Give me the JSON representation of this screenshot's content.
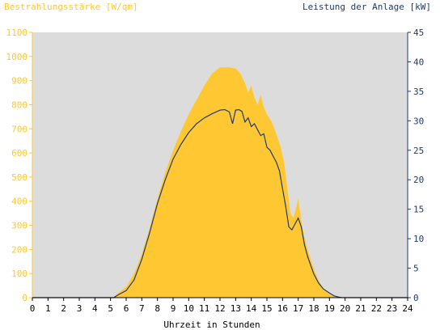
{
  "chart_data": {
    "type": "area",
    "left_axis_title": "Bestrahlungsstärke [W/qm]",
    "right_axis_title": "Leistung der Anlage [kW]",
    "xlabel": "Uhrzeit in Stunden",
    "xlim": [
      0,
      24
    ],
    "x_ticks": [
      "0",
      "1",
      "2",
      "3",
      "4",
      "5",
      "6",
      "7",
      "8",
      "9",
      "10",
      "11",
      "12",
      "13",
      "14",
      "15",
      "16",
      "17",
      "18",
      "19",
      "20",
      "21",
      "22",
      "23",
      "24"
    ],
    "y_left_lim": [
      0,
      1100
    ],
    "y_left_ticks": [
      "0",
      "100",
      "200",
      "300",
      "400",
      "500",
      "600",
      "700",
      "800",
      "900",
      "1000",
      "1100"
    ],
    "y_right_lim": [
      0,
      45
    ],
    "y_right_ticks": [
      "0",
      "5",
      "10",
      "15",
      "20",
      "25",
      "30",
      "35",
      "40",
      "45"
    ],
    "grid": false,
    "colors": {
      "plot_background": "#DCDCDC",
      "irradiance": "#FFC832",
      "power": "#1F3A6E",
      "left_axis": "#FFC832",
      "right_axis": "#1F3A6E"
    },
    "series": [
      {
        "name": "Bestrahlungsstärke [W/qm]",
        "axis": "left",
        "kind": "area",
        "x": [
          5.2,
          5.5,
          6.0,
          6.5,
          7.0,
          7.5,
          8.0,
          8.5,
          9.0,
          9.5,
          10.0,
          10.5,
          11.0,
          11.5,
          12.0,
          12.3,
          12.6,
          13.0,
          13.3,
          13.6,
          13.8,
          14.0,
          14.2,
          14.4,
          14.6,
          14.8,
          15.0,
          15.3,
          15.6,
          15.9,
          16.1,
          16.3,
          16.5,
          16.7,
          16.9,
          17.0,
          17.2,
          17.4,
          17.6,
          17.8,
          18.0,
          18.3,
          18.6,
          19.0,
          19.3,
          19.6,
          19.8
        ],
        "values": [
          0,
          20,
          45,
          100,
          180,
          290,
          410,
          520,
          610,
          690,
          760,
          820,
          880,
          930,
          955,
          955,
          955,
          950,
          930,
          890,
          850,
          880,
          830,
          800,
          840,
          790,
          760,
          730,
          680,
          620,
          560,
          460,
          350,
          330,
          380,
          410,
          320,
          250,
          200,
          160,
          120,
          70,
          40,
          15,
          5,
          2,
          0
        ]
      },
      {
        "name": "Leistung der Anlage [kW]",
        "axis": "right",
        "kind": "line",
        "x": [
          5.2,
          5.5,
          6.0,
          6.5,
          7.0,
          7.5,
          8.0,
          8.5,
          9.0,
          9.5,
          10.0,
          10.5,
          11.0,
          11.5,
          12.0,
          12.3,
          12.6,
          12.8,
          13.0,
          13.2,
          13.4,
          13.6,
          13.8,
          14.0,
          14.2,
          14.4,
          14.6,
          14.8,
          15.0,
          15.2,
          15.4,
          15.6,
          15.8,
          16.0,
          16.2,
          16.4,
          16.6,
          16.8,
          17.0,
          17.2,
          17.4,
          17.6,
          17.8,
          18.0,
          18.3,
          18.6,
          19.0,
          19.3,
          19.6,
          19.8
        ],
        "values": [
          0,
          0.5,
          1.2,
          3.0,
          6.5,
          11.0,
          16.0,
          20.0,
          23.5,
          26.0,
          28.0,
          29.5,
          30.5,
          31.2,
          31.8,
          31.9,
          31.5,
          29.5,
          31.8,
          31.9,
          31.6,
          29.8,
          30.5,
          29.0,
          29.5,
          28.5,
          27.5,
          27.8,
          25.5,
          25.0,
          24.0,
          23.0,
          21.5,
          18.5,
          15.5,
          12.0,
          11.5,
          12.5,
          13.5,
          12.0,
          9.0,
          7.0,
          5.5,
          4.0,
          2.5,
          1.5,
          0.8,
          0.3,
          0.1,
          0
        ]
      }
    ]
  }
}
